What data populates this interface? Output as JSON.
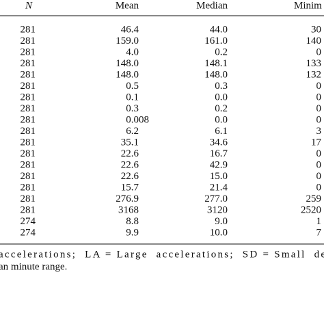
{
  "table": {
    "header": [
      "N",
      "Mean",
      "Median",
      "Minim"
    ],
    "rows": [
      [
        "281",
        "46.4",
        "44.0",
        "30"
      ],
      [
        "281",
        "159.0",
        "161.0",
        "140"
      ],
      [
        "281",
        "4.0",
        "0.2",
        "0"
      ],
      [
        "281",
        "148.0",
        "148.1",
        "133"
      ],
      [
        "281",
        "148.0",
        "148.0",
        "132"
      ],
      [
        "281",
        "0.5",
        "0.3",
        "0"
      ],
      [
        "281",
        "0.1",
        "0.0",
        "0"
      ],
      [
        "281",
        "0.3",
        "0.2",
        "0"
      ],
      [
        "281",
        "0.008",
        "0.0",
        "0"
      ],
      [
        "281",
        "6.2",
        "6.1",
        "3"
      ],
      [
        "281",
        "35.1",
        "34.6",
        "17"
      ],
      [
        "281",
        "22.6",
        "16.7",
        "0"
      ],
      [
        "281",
        "22.6",
        "42.9",
        "0"
      ],
      [
        "281",
        "22.6",
        "15.0",
        "0"
      ],
      [
        "281",
        "15.7",
        "21.4",
        "0"
      ],
      [
        "281",
        "276.9",
        "277.0",
        "259"
      ],
      [
        "281",
        "3168",
        "3120",
        "2520"
      ],
      [
        "274",
        "8.8",
        "9.0",
        "1"
      ],
      [
        "274",
        "9.9",
        "10.0",
        "7"
      ]
    ]
  },
  "footnote": [
    "accelerations;  LA = Large  accelerations;  SD = Small  de",
    "an minute range."
  ]
}
